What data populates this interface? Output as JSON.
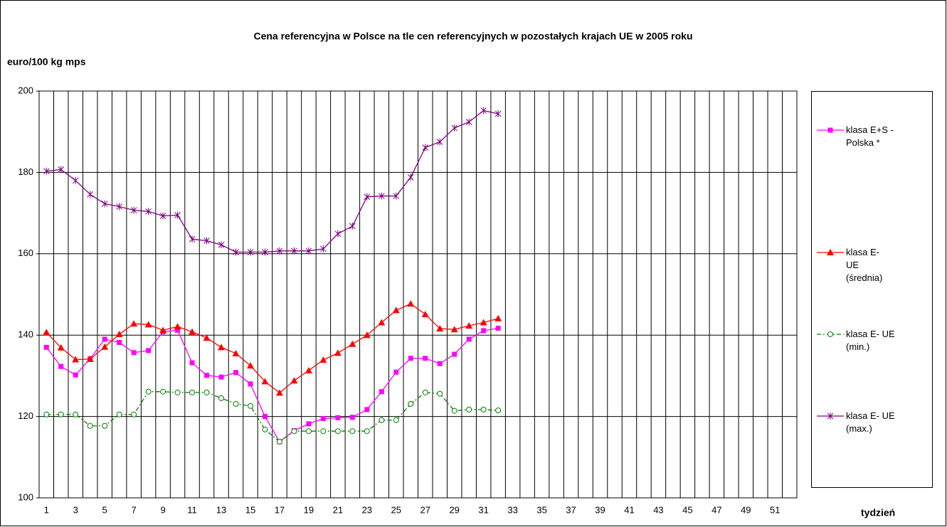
{
  "chart_data": {
    "type": "line",
    "title": "Cena referencyjna w Polsce na tle cen referencyjnych w pozostałych krajach UE w 2005 roku",
    "y_label": "euro/100 kg mps",
    "x_label": "tydzień",
    "categories": [
      1,
      null,
      3,
      null,
      5,
      null,
      7,
      null,
      9,
      null,
      11,
      null,
      13,
      null,
      15,
      null,
      17,
      null,
      19,
      null,
      21,
      null,
      23,
      null,
      25,
      null,
      27,
      null,
      29,
      null,
      31,
      null,
      33,
      null,
      35,
      null,
      37,
      null,
      39,
      null,
      41,
      null,
      43,
      null,
      45,
      null,
      47,
      null,
      49,
      null,
      51,
      null
    ],
    "ylim": [
      100,
      200
    ],
    "yticks": [
      100,
      120,
      140,
      160,
      180,
      200
    ],
    "grid": true,
    "legend": "right",
    "series": [
      {
        "name": "klasa E+S - Polska *",
        "color": "#ff00ff",
        "marker": "square",
        "linestyle": "solid",
        "values": [
          137,
          132.3,
          130.2,
          134.2,
          139,
          138.2,
          135.7,
          136.2,
          140.8,
          141.2,
          133.2,
          130.1,
          129.7,
          130.8,
          128,
          120,
          113.8,
          116.5,
          118.2,
          119.5,
          119.7,
          119.8,
          121.7,
          126.1,
          130.9,
          134.3,
          134.3,
          133,
          135.3,
          139,
          141.1,
          141.7,
          null,
          null,
          null,
          null,
          null,
          null,
          null,
          null,
          null,
          null,
          null,
          null,
          null,
          null,
          null,
          null,
          null,
          null,
          null,
          null
        ]
      },
      {
        "name": "klasa E- UE (średnia)",
        "color": "#ff0000",
        "marker": "triangle",
        "linestyle": "solid",
        "values": [
          140.7,
          136.9,
          134,
          134.1,
          137.1,
          140.2,
          142.8,
          142.6,
          141.2,
          142.1,
          140.8,
          139.3,
          137,
          135.5,
          132.5,
          128.6,
          125.8,
          128.8,
          131.3,
          133.9,
          135.6,
          137.8,
          140,
          143.1,
          146.1,
          147.7,
          145.1,
          141.6,
          141.4,
          142.3,
          143.1,
          144.1,
          null,
          null,
          null,
          null,
          null,
          null,
          null,
          null,
          null,
          null,
          null,
          null,
          null,
          null,
          null,
          null,
          null,
          null,
          null,
          null
        ]
      },
      {
        "name": "klasa E- UE (min.)",
        "color": "#008000",
        "marker": "circle",
        "linestyle": "dashdot",
        "values": [
          120.5,
          120.5,
          120.5,
          117.7,
          117.7,
          120.5,
          120.5,
          126.1,
          126.1,
          125.9,
          125.9,
          125.9,
          124.5,
          123.1,
          122.6,
          116.8,
          113.8,
          116.4,
          116.4,
          116.4,
          116.4,
          116.4,
          116.4,
          119.1,
          119.1,
          123.1,
          125.9,
          125.6,
          121.4,
          121.7,
          121.7,
          121.5,
          null,
          null,
          null,
          null,
          null,
          null,
          null,
          null,
          null,
          null,
          null,
          null,
          null,
          null,
          null,
          null,
          null,
          null,
          null,
          null
        ]
      },
      {
        "name": "klasa E- UE (max.)",
        "color": "#800080",
        "marker": "star",
        "linestyle": "solid",
        "values": [
          180.3,
          180.7,
          178,
          174.6,
          172.3,
          171.6,
          170.7,
          170.4,
          169.3,
          169.5,
          163.6,
          163.2,
          162.2,
          160.4,
          160.4,
          160.4,
          160.7,
          160.7,
          160.7,
          161.2,
          164.9,
          166.8,
          174,
          174.2,
          174.2,
          178.8,
          186.1,
          187.5,
          190.9,
          192.4,
          195.2,
          194.4,
          null,
          null,
          null,
          null,
          null,
          null,
          null,
          null,
          null,
          null,
          null,
          null,
          null,
          null,
          null,
          null,
          null,
          null,
          null,
          null
        ]
      }
    ]
  }
}
